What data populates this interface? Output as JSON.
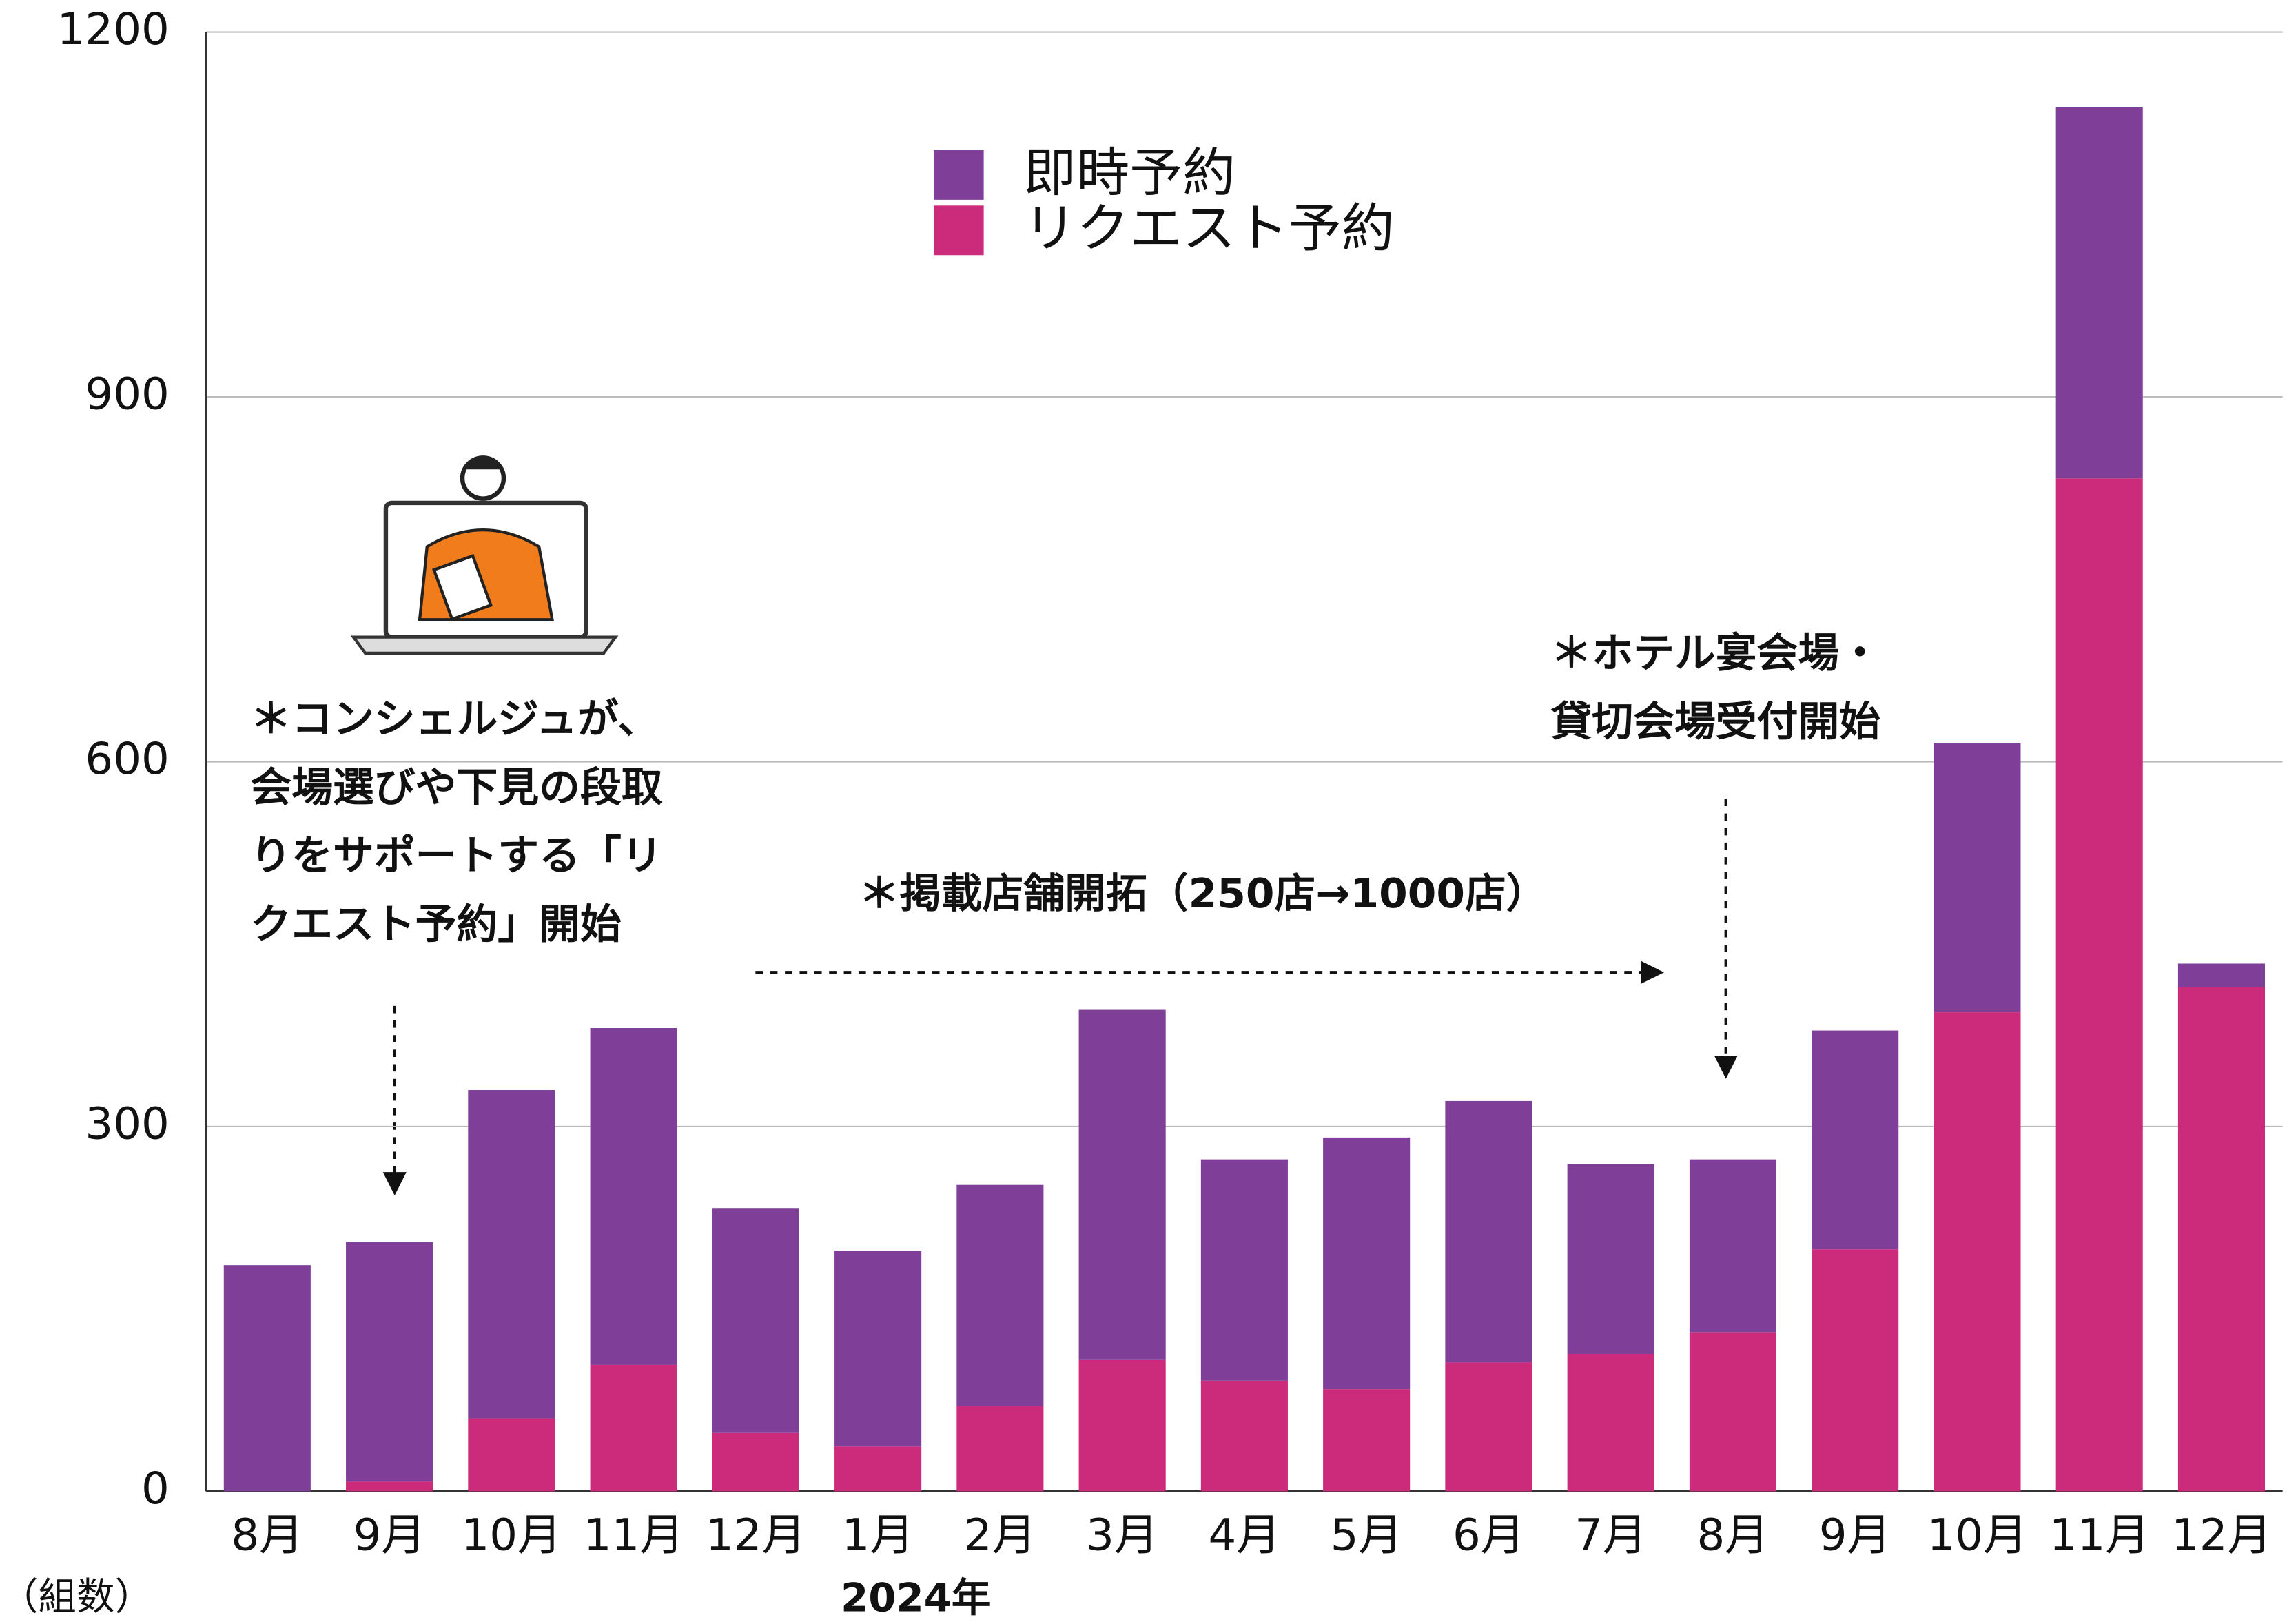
{
  "chart_data": {
    "type": "stacked_bar",
    "categories": [
      "8月",
      "9月",
      "10月",
      "11月",
      "12月",
      "1月",
      "2月",
      "3月",
      "4月",
      "5月",
      "6月",
      "7月",
      "8月",
      "9月",
      "10月",
      "11月",
      "12月"
    ],
    "series": [
      {
        "name": "即時予約",
        "color": "#7f3f98",
        "values": [
          186,
          197,
          270,
          277,
          185,
          161,
          182,
          288,
          182,
          207,
          215,
          156,
          142,
          180,
          221,
          305,
          19
        ]
      },
      {
        "name": "リクエスト予約",
        "color": "#cc2a7a",
        "values": [
          0,
          8,
          60,
          104,
          48,
          37,
          70,
          108,
          91,
          84,
          106,
          113,
          131,
          199,
          394,
          833,
          415
        ]
      }
    ],
    "ylim": [
      0,
      1200
    ],
    "yticks": [
      0,
      300,
      600,
      900,
      1200
    ],
    "grid": true,
    "y_label": "（組数）",
    "x_group_label": "2024年",
    "annotations": [
      {
        "lines": [
          "＊コンシェルジュが、",
          "会場選びや下見の段取",
          "りをサポートする「リ",
          "クエスト予約」開始"
        ]
      },
      {
        "lines": [
          "＊掲載店舗開拓（250店→1000店）"
        ]
      },
      {
        "lines": [
          "＊ホテル宴会場・",
          "貸切会場受付開始"
        ]
      }
    ]
  }
}
